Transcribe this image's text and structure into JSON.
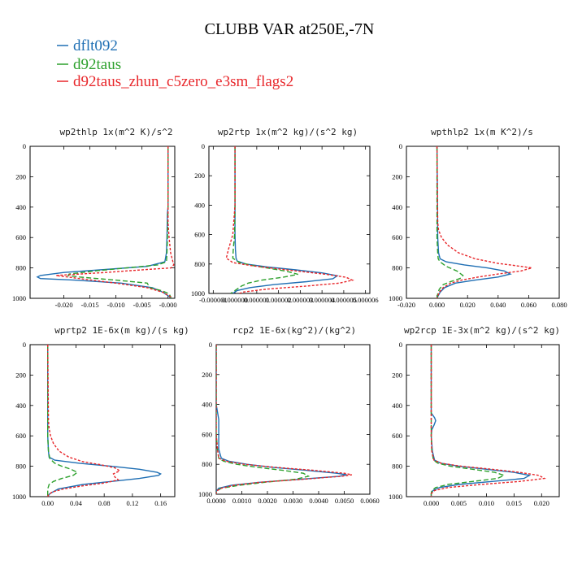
{
  "figure": {
    "title": "CLUBB VAR at250E,-7N",
    "legend": [
      {
        "label": "dflt092",
        "color": "#1f6fb4",
        "dash": "none"
      },
      {
        "label": "d92taus",
        "color": "#2ca02c",
        "dash": "6,3"
      },
      {
        "label": "d92taus_zhun_c5zero_e3sm_flags2",
        "color": "#e8262a",
        "dash": "3,2"
      }
    ]
  },
  "chart_data": [
    {
      "type": "line",
      "title": "wp2thlp  1x(m^2 K)/s^2",
      "xlim": [
        -0.0265,
        0.0013
      ],
      "xticks": [
        -0.02,
        -0.015,
        -0.01,
        -0.005,
        -0.0
      ],
      "xtick_labels": [
        "-0.020",
        "-0.015",
        "-0.010",
        "-0.005",
        "-0.000"
      ],
      "ylim": [
        0,
        1000
      ],
      "yticks": [
        0,
        200,
        400,
        600,
        800,
        1000
      ],
      "ytick_labels": [
        "0",
        "200",
        "400",
        "600",
        "800",
        "1000"
      ],
      "series": [
        {
          "y": [
            0,
            400,
            440,
            600,
            700,
            760,
            790,
            810,
            830,
            850,
            860,
            870,
            880,
            900,
            930,
            960,
            990,
            1000
          ],
          "x": [
            0.0,
            0.0,
            -0.0001,
            -0.0002,
            -0.0003,
            -0.0006,
            -0.004,
            -0.012,
            -0.02,
            -0.0245,
            -0.0251,
            -0.0245,
            -0.018,
            -0.009,
            -0.003,
            -0.001,
            0.0003,
            0.0005
          ]
        },
        {
          "y": [
            0,
            400,
            600,
            700,
            760,
            780,
            800,
            820,
            840,
            850,
            860,
            880,
            900,
            930,
            950,
            970,
            990,
            1000
          ],
          "x": [
            0.0,
            0.0,
            -0.0001,
            -0.0002,
            -0.0003,
            -0.002,
            -0.008,
            -0.014,
            -0.019,
            -0.0192,
            -0.017,
            -0.01,
            -0.004,
            -0.0035,
            -0.0012,
            0.0002,
            0.0005,
            0.0006
          ]
        },
        {
          "y": [
            0,
            500,
            600,
            700,
            740,
            780,
            800,
            810,
            830,
            850,
            870,
            900,
            930,
            960,
            990,
            1000
          ],
          "x": [
            0.0,
            0.0,
            0.0002,
            0.0005,
            0.0008,
            0.0011,
            0.0006,
            -0.004,
            -0.012,
            -0.0215,
            -0.017,
            -0.01,
            -0.004,
            -0.001,
            0.0005,
            0.0007
          ]
        }
      ]
    },
    {
      "type": "line",
      "title": "wp2rtp  1x(m^2 kg)/(s^2 kg)",
      "xlim": [
        -1.2e-06,
        6.2e-06
      ],
      "xticks": [
        -1e-06,
        0.0,
        1e-06,
        2e-06,
        3e-06,
        4e-06,
        5e-06,
        6e-06
      ],
      "xtick_labels": [
        "-0.000001",
        "0.000000",
        "0.000001",
        "0.000002",
        "0.000003",
        "0.000004",
        "0.000005",
        "0.000006"
      ],
      "ylim": [
        0,
        1000
      ],
      "yticks": [
        0,
        200,
        400,
        600,
        800,
        1000
      ],
      "ytick_labels": [
        "0",
        "200",
        "400",
        "600",
        "800",
        "1000"
      ],
      "series": [
        {
          "y": [
            0,
            400,
            600,
            700,
            760,
            780,
            800,
            820,
            840,
            860,
            880,
            900,
            920,
            940,
            960,
            980,
            1000
          ],
          "x": [
            0.0,
            0.0,
            0.0,
            2e-08,
            5e-08,
            1e-07,
            5e-07,
            1.5e-06,
            2.8e-06,
            4e-06,
            4.7e-06,
            4.5e-06,
            3.3e-06,
            1.8e-06,
            7e-07,
            1e-07,
            -1e-07
          ]
        },
        {
          "y": [
            0,
            400,
            600,
            700,
            760,
            790,
            810,
            830,
            850,
            870,
            890,
            910,
            930,
            950,
            970,
            1000
          ],
          "x": [
            0.0,
            0.0,
            -2e-08,
            -8e-08,
            -1e-07,
            2e-07,
            8e-07,
            1.6e-06,
            2.4e-06,
            2.9e-06,
            2.2e-06,
            1.2e-06,
            6e-07,
            3e-07,
            1e-07,
            -2e-07
          ]
        },
        {
          "y": [
            0,
            400,
            600,
            700,
            760,
            790,
            810,
            830,
            850,
            870,
            890,
            910,
            930,
            950,
            970,
            990,
            1000
          ],
          "x": [
            0.0,
            0.0,
            -1e-07,
            -3e-07,
            -4e-07,
            -1e-07,
            7e-07,
            1.8e-06,
            3e-06,
            4.2e-06,
            5.1e-06,
            5.4e-06,
            4.8e-06,
            3.3e-06,
            1.5e-06,
            4e-07,
            2e-07
          ]
        }
      ]
    },
    {
      "type": "line",
      "title": "wpthlp2  1x(m K^2)/s",
      "xlim": [
        -0.02,
        0.08
      ],
      "xticks": [
        -0.02,
        0.0,
        0.02,
        0.04,
        0.06,
        0.08
      ],
      "xtick_labels": [
        "-0.020",
        "0.000",
        "0.020",
        "0.040",
        "0.060",
        "0.080"
      ],
      "ylim": [
        0,
        1000
      ],
      "yticks": [
        0,
        200,
        400,
        600,
        800,
        1000
      ],
      "ytick_labels": [
        "0",
        "200",
        "400",
        "600",
        "800",
        "1000"
      ],
      "series": [
        {
          "y": [
            0,
            600,
            700,
            740,
            760,
            780,
            800,
            820,
            840,
            860,
            880,
            900,
            930,
            960,
            990,
            1000
          ],
          "x": [
            0.0,
            0.0005,
            0.001,
            0.002,
            0.006,
            0.018,
            0.033,
            0.044,
            0.048,
            0.04,
            0.025,
            0.012,
            0.005,
            0.002,
            0.0005,
            0.0
          ]
        },
        {
          "y": [
            0,
            600,
            700,
            740,
            760,
            790,
            820,
            850,
            870,
            890,
            910,
            940,
            970,
            1000
          ],
          "x": [
            0.0,
            0.0,
            0.0005,
            0.0008,
            0.002,
            0.006,
            0.013,
            0.017,
            0.015,
            0.009,
            0.004,
            0.0015,
            0.0005,
            0.0
          ]
        },
        {
          "y": [
            0,
            500,
            550,
            600,
            650,
            700,
            740,
            770,
            790,
            800,
            820,
            840,
            860,
            880,
            900,
            930,
            960,
            990,
            1000
          ],
          "x": [
            0.0,
            0.0005,
            0.001,
            0.003,
            0.007,
            0.014,
            0.025,
            0.04,
            0.055,
            0.062,
            0.055,
            0.04,
            0.027,
            0.016,
            0.009,
            0.004,
            0.0015,
            0.0003,
            0.0
          ]
        }
      ]
    },
    {
      "type": "line",
      "title": "wprtp2  1E-6x(m kg)/(s kg)",
      "xlim": [
        -0.025,
        0.18
      ],
      "xticks": [
        0.0,
        0.04,
        0.08,
        0.12,
        0.16
      ],
      "xtick_labels": [
        "0.00",
        "0.04",
        "0.08",
        "0.12",
        "0.16"
      ],
      "ylim": [
        0,
        1000
      ],
      "yticks": [
        0,
        200,
        400,
        600,
        800,
        1000
      ],
      "ytick_labels": [
        "0",
        "200",
        "400",
        "600",
        "800",
        "1000"
      ],
      "series": [
        {
          "y": [
            0,
            600,
            700,
            740,
            760,
            780,
            800,
            820,
            840,
            850,
            860,
            880,
            900,
            920,
            950,
            980,
            1000
          ],
          "x": [
            0.0,
            0.0,
            0.001,
            0.002,
            0.01,
            0.045,
            0.09,
            0.13,
            0.155,
            0.16,
            0.157,
            0.13,
            0.09,
            0.05,
            0.015,
            0.003,
            0.0
          ]
        },
        {
          "y": [
            0,
            600,
            700,
            750,
            780,
            800,
            820,
            840,
            860,
            880,
            900,
            920,
            950,
            980,
            1000
          ],
          "x": [
            0.0,
            0.0,
            0.001,
            0.003,
            0.01,
            0.02,
            0.033,
            0.042,
            0.036,
            0.02,
            0.008,
            0.002,
            0.0,
            0.0,
            0.0
          ]
        },
        {
          "y": [
            0,
            500,
            550,
            600,
            650,
            700,
            740,
            770,
            790,
            810,
            830,
            850,
            870,
            890,
            910,
            930,
            950,
            970,
            990,
            1000
          ],
          "x": [
            0.0,
            0.001,
            0.002,
            0.004,
            0.008,
            0.016,
            0.03,
            0.05,
            0.075,
            0.095,
            0.102,
            0.093,
            0.095,
            0.1,
            0.08,
            0.048,
            0.022,
            0.006,
            0.001,
            0.0
          ]
        }
      ]
    },
    {
      "type": "line",
      "title": "rcp2  1E-6x(kg^2)/(kg^2)",
      "xlim": [
        0.0,
        0.006
      ],
      "xticks": [
        0.0,
        0.001,
        0.002,
        0.003,
        0.004,
        0.005,
        0.006
      ],
      "xtick_labels": [
        "0.0000",
        "0.0010",
        "0.0020",
        "0.0030",
        "0.0040",
        "0.0050",
        "0.0060"
      ],
      "ylim": [
        0,
        1000
      ],
      "yticks": [
        0,
        200,
        400,
        600,
        800,
        1000
      ],
      "ytick_labels": [
        "0",
        "200",
        "400",
        "600",
        "800",
        "1000"
      ],
      "series": [
        {
          "y": [
            0,
            400,
            500,
            600,
            700,
            760,
            780,
            800,
            820,
            840,
            860,
            870,
            880,
            900,
            920,
            940,
            960,
            980,
            1000
          ],
          "x": [
            0.0,
            0.0,
            0.0001,
            0.0001,
            0.0001,
            0.0002,
            0.0005,
            0.0012,
            0.0022,
            0.0035,
            0.0047,
            0.0051,
            0.0048,
            0.0033,
            0.0017,
            0.0006,
            0.0001,
            0.0,
            0.0
          ]
        },
        {
          "y": [
            0,
            400,
            600,
            700,
            760,
            780,
            800,
            820,
            840,
            860,
            880,
            900,
            920,
            940,
            960,
            980,
            1000
          ],
          "x": [
            0.0,
            0.0,
            0.0,
            5e-05,
            0.0001,
            0.0003,
            0.0008,
            0.0016,
            0.0026,
            0.0034,
            0.0036,
            0.0031,
            0.0019,
            0.0009,
            0.0002,
            0.0,
            0.0
          ]
        },
        {
          "y": [
            0,
            400,
            600,
            700,
            760,
            780,
            800,
            820,
            840,
            860,
            870,
            880,
            900,
            920,
            940,
            960,
            980,
            1000
          ],
          "x": [
            0.0,
            0.0,
            0.0,
            5e-05,
            0.0001,
            0.0004,
            0.0011,
            0.0023,
            0.0038,
            0.005,
            0.0053,
            0.0049,
            0.0034,
            0.0017,
            0.0007,
            0.0002,
            0.0,
            0.0
          ]
        }
      ]
    },
    {
      "type": "line",
      "title": "wp2rcp  1E-3x(m^2 kg)/(s^2 kg)",
      "xlim": [
        -0.0045,
        0.0232
      ],
      "xticks": [
        0.0,
        0.005,
        0.01,
        0.015,
        0.02
      ],
      "xtick_labels": [
        "0.000",
        "0.005",
        "0.010",
        "0.015",
        "0.020"
      ],
      "ylim": [
        0,
        1000
      ],
      "yticks": [
        0,
        200,
        400,
        600,
        800,
        1000
      ],
      "ytick_labels": [
        "0",
        "200",
        "400",
        "600",
        "800",
        "1000"
      ],
      "series": [
        {
          "y": [
            0,
            450,
            480,
            500,
            530,
            560,
            600,
            700,
            760,
            780,
            800,
            820,
            840,
            860,
            880,
            900,
            920,
            940,
            960,
            980,
            1000
          ],
          "x": [
            0.0,
            0.0,
            0.0006,
            0.0008,
            0.0005,
            0.0001,
            0.0,
            0.0002,
            0.0006,
            0.0018,
            0.005,
            0.01,
            0.015,
            0.0178,
            0.0168,
            0.011,
            0.005,
            0.0015,
            0.0003,
            0.0,
            0.0
          ]
        },
        {
          "y": [
            0,
            400,
            600,
            700,
            760,
            780,
            800,
            820,
            840,
            860,
            880,
            900,
            920,
            940,
            960,
            980,
            1000
          ],
          "x": [
            0.0,
            0.0,
            0.0,
            0.0001,
            0.0004,
            0.0012,
            0.0035,
            0.0075,
            0.0115,
            0.0132,
            0.012,
            0.0075,
            0.003,
            0.0008,
            0.0001,
            0.0,
            0.0
          ]
        },
        {
          "y": [
            0,
            400,
            600,
            700,
            760,
            780,
            800,
            820,
            840,
            860,
            880,
            900,
            920,
            940,
            960,
            980,
            1000
          ],
          "x": [
            0.0,
            0.0,
            0.0,
            0.0001,
            0.0005,
            0.0018,
            0.0055,
            0.011,
            0.016,
            0.0195,
            0.0205,
            0.016,
            0.009,
            0.003,
            0.0006,
            0.0,
            0.0
          ]
        }
      ]
    }
  ]
}
